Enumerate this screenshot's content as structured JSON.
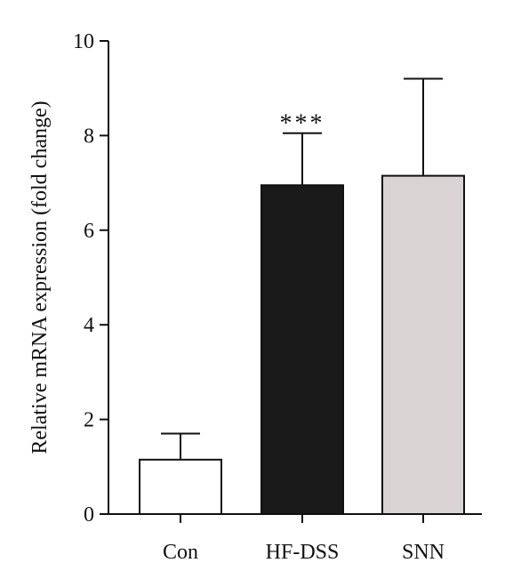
{
  "chart_data": {
    "type": "bar",
    "title": "",
    "xlabel": "",
    "ylabel": "Relative mRNA expression (fold change)",
    "ylim": [
      0,
      10
    ],
    "yticks": [
      "0",
      "2",
      "4",
      "6",
      "8",
      "10"
    ],
    "grid": false,
    "categories": [
      "Con",
      "HF-DSS",
      "SNN"
    ],
    "values": [
      1.15,
      6.95,
      7.15
    ],
    "errors": [
      0.55,
      1.1,
      2.05
    ],
    "colors": [
      "#ffffff",
      "#1a1a1a",
      "#d9d3d3"
    ],
    "annotations": [
      {
        "category": "HF-DSS",
        "text": "***"
      }
    ]
  }
}
